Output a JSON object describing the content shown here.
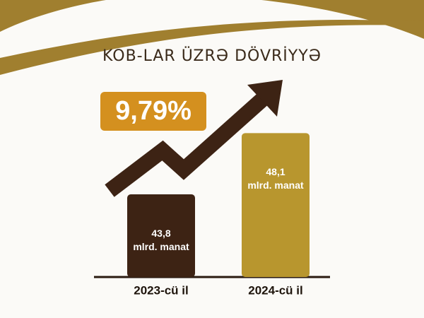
{
  "chart_data": {
    "type": "bar",
    "title": "KOB-LAR ÜZRƏ DÖVRİYYƏ",
    "annotation": "9,79%",
    "categories": [
      "2023-cü il",
      "2024-cü il"
    ],
    "values": [
      43.8,
      48.1
    ],
    "value_labels": [
      "43,8",
      "48,1"
    ],
    "unit": "mlrd. manat",
    "colors": [
      "#3d2314",
      "#b8962e"
    ],
    "ylim": [
      38,
      50
    ]
  }
}
